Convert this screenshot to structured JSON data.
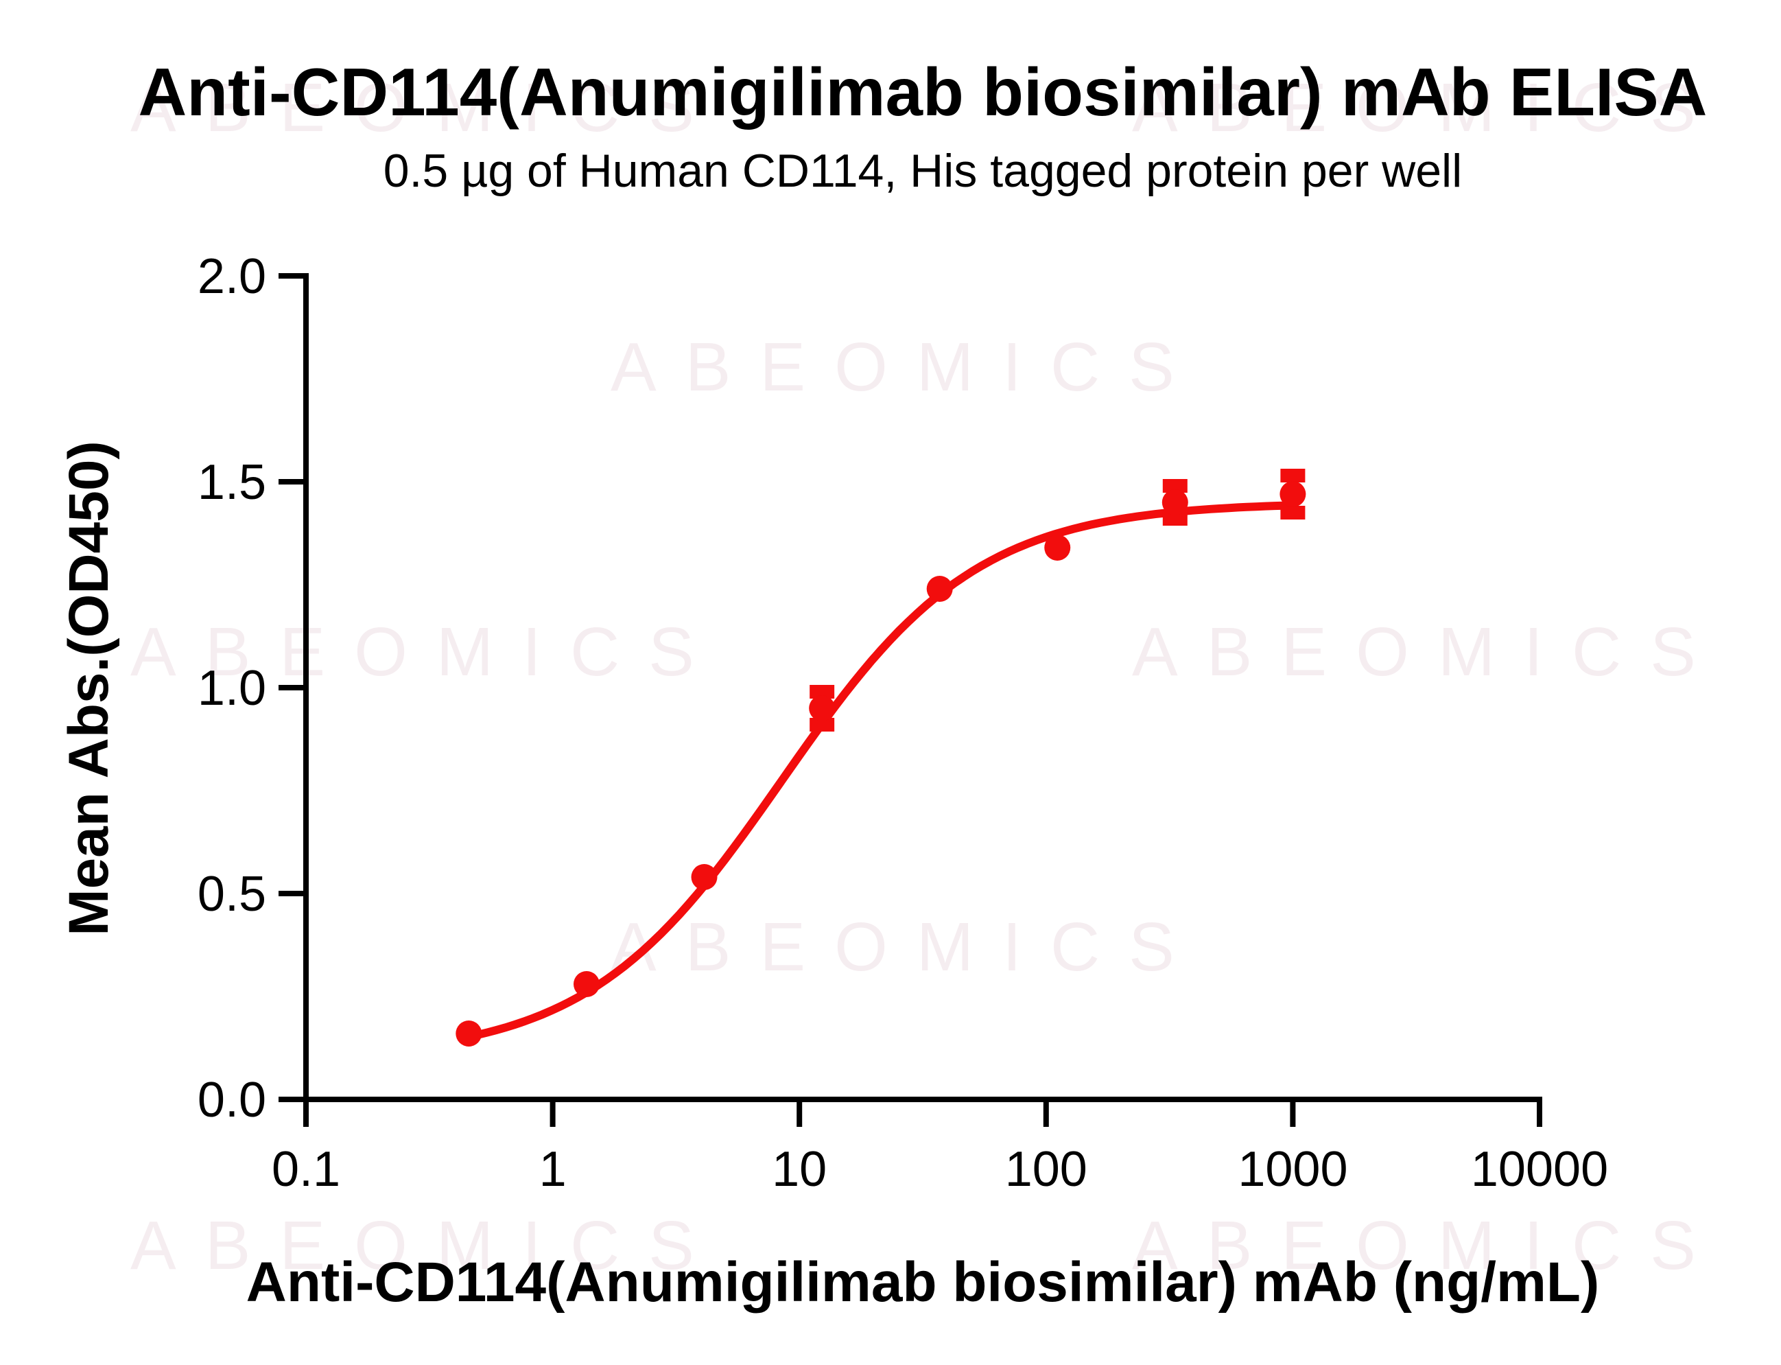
{
  "header": {
    "title": "Anti-CD114(Anumigilimab biosimilar) mAb ELISA",
    "subtitle": "0.5 µg of Human CD114, His tagged protein per well"
  },
  "watermark": {
    "text": "ABEOMICS"
  },
  "chart_data": {
    "type": "scatter",
    "curve": "4PL sigmoid fit",
    "title": "Anti-CD114(Anumigilimab biosimilar) mAb ELISA",
    "subtitle": "0.5 µg of Human CD114, His tagged protein per well",
    "xlabel": "Anti-CD114(Anumigilimab biosimilar) mAb (ng/mL)",
    "ylabel": "Mean Abs.(OD450)",
    "x_scale": "log10",
    "xlim": [
      0.1,
      10000
    ],
    "ylim": [
      0.0,
      2.0
    ],
    "x_ticks": [
      0.1,
      1,
      10,
      100,
      1000,
      10000
    ],
    "x_tick_labels": [
      "0.1",
      "1",
      "10",
      "100",
      "1000",
      "10000"
    ],
    "y_ticks": [
      0.0,
      0.5,
      1.0,
      1.5,
      2.0
    ],
    "y_tick_labels": [
      "0.0",
      "0.5",
      "1.0",
      "1.5",
      "2.0"
    ],
    "grid": false,
    "legend": "none",
    "series_color": "#f20d0d",
    "axis_color": "#000000",
    "points": [
      {
        "x": 0.457,
        "y": 0.16,
        "yerr": 0.0
      },
      {
        "x": 1.372,
        "y": 0.28,
        "yerr": 0.0
      },
      {
        "x": 4.115,
        "y": 0.54,
        "yerr": 0.0
      },
      {
        "x": 12.35,
        "y": 0.95,
        "yerr": 0.04
      },
      {
        "x": 37.04,
        "y": 1.24,
        "yerr": 0.0
      },
      {
        "x": 111.1,
        "y": 1.34,
        "yerr": 0.0
      },
      {
        "x": 333.3,
        "y": 1.45,
        "yerr": 0.04
      },
      {
        "x": 1000.0,
        "y": 1.47,
        "yerr": 0.045
      }
    ],
    "fit_4pl": {
      "bottom": 0.1,
      "top": 1.45,
      "ec50": 8.5,
      "hill": 1.1
    }
  }
}
